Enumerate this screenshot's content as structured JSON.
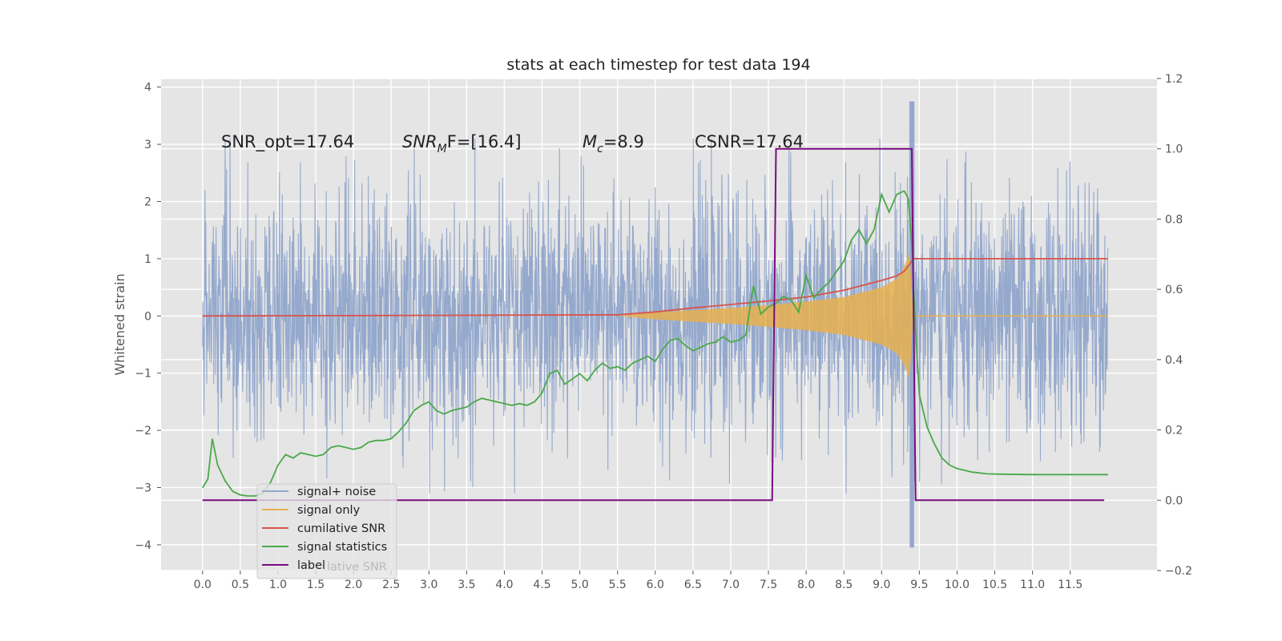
{
  "chart_data": {
    "type": "line",
    "title": "stats at each timestep for test data 194",
    "xlabel": "",
    "ylabel": "Whitened strain",
    "y2label": "",
    "xlim": [
      -0.55,
      12.65
    ],
    "ylim": [
      -4.45,
      4.15
    ],
    "y2lim": [
      -0.2,
      1.2
    ],
    "grid": true,
    "legend_position": "lower-left",
    "x_ticks": [
      "0.0",
      "0.5",
      "1.0",
      "1.5",
      "2.0",
      "2.5",
      "3.0",
      "3.5",
      "4.0",
      "4.5",
      "5.0",
      "5.5",
      "6.0",
      "6.5",
      "7.0",
      "7.5",
      "8.0",
      "8.5",
      "9.0",
      "9.5",
      "10.0",
      "10.5",
      "11.0",
      "11.5"
    ],
    "y_ticks": [
      "4",
      "3",
      "2",
      "1",
      "0",
      "−1",
      "−2",
      "−3",
      "−4"
    ],
    "y2_ticks": [
      "1.2",
      "1.0",
      "0.8",
      "0.6",
      "0.4",
      "0.2",
      "0.0",
      "−0.2"
    ],
    "annotations": {
      "snr_opt": "SNR_opt=17.64",
      "snr_mf_main": "SNR",
      "snr_mf_sub": "M",
      "snr_mf_rest": "F=[16.4]",
      "mc_main": "M",
      "mc_sub": "c",
      "mc_rest": "=8.9",
      "csnr": "CSNR=17.64"
    },
    "legend": {
      "ghost_text": "lative SNR"
    },
    "series": [
      {
        "name": "signal+ noise",
        "color": "#95a9cd",
        "axis": "left",
        "style": "noise",
        "x_range": [
          0.0,
          12.0
        ],
        "envelope": "approximately ±1.6 with spikes to ±3.8",
        "peak_x": 9.4,
        "peak_y": 3.75
      },
      {
        "name": "signal only",
        "color": "#e8b04d",
        "axis": "left",
        "style": "chirp-envelope",
        "x": [
          5.5,
          6.0,
          6.5,
          7.0,
          7.5,
          8.0,
          8.5,
          9.0,
          9.2,
          9.3,
          9.37,
          9.42,
          12.0
        ],
        "amplitude": [
          0.0,
          0.06,
          0.1,
          0.14,
          0.19,
          0.25,
          0.33,
          0.5,
          0.65,
          0.85,
          1.1,
          0.0,
          0.0
        ]
      },
      {
        "name": "cumilative SNR",
        "color": "#d9534a",
        "axis": "left",
        "x": [
          0.0,
          3.0,
          5.5,
          6.0,
          6.5,
          7.0,
          7.5,
          8.0,
          8.5,
          9.0,
          9.2,
          9.3,
          9.37,
          9.42,
          12.0
        ],
        "y": [
          0.0,
          0.01,
          0.02,
          0.07,
          0.14,
          0.2,
          0.26,
          0.33,
          0.45,
          0.62,
          0.7,
          0.78,
          0.9,
          1.0,
          1.0
        ]
      },
      {
        "name": "signal statistics",
        "color": "#4aa84a",
        "axis": "right",
        "x": [
          0.0,
          0.07,
          0.13,
          0.2,
          0.3,
          0.4,
          0.5,
          0.6,
          0.7,
          0.8,
          0.9,
          1.0,
          1.1,
          1.2,
          1.3,
          1.4,
          1.5,
          1.6,
          1.7,
          1.8,
          1.9,
          2.0,
          2.1,
          2.2,
          2.3,
          2.4,
          2.5,
          2.6,
          2.7,
          2.8,
          2.9,
          3.0,
          3.1,
          3.2,
          3.3,
          3.4,
          3.5,
          3.6,
          3.7,
          3.8,
          3.9,
          4.0,
          4.1,
          4.2,
          4.3,
          4.4,
          4.5,
          4.6,
          4.7,
          4.8,
          4.9,
          5.0,
          5.1,
          5.2,
          5.3,
          5.4,
          5.5,
          5.6,
          5.7,
          5.8,
          5.9,
          6.0,
          6.1,
          6.2,
          6.3,
          6.4,
          6.5,
          6.6,
          6.7,
          6.8,
          6.9,
          7.0,
          7.1,
          7.2,
          7.3,
          7.4,
          7.5,
          7.6,
          7.7,
          7.8,
          7.9,
          8.0,
          8.1,
          8.2,
          8.3,
          8.4,
          8.5,
          8.6,
          8.7,
          8.8,
          8.9,
          9.0,
          9.1,
          9.2,
          9.3,
          9.35,
          9.4,
          9.45,
          9.5,
          9.6,
          9.7,
          9.8,
          9.9,
          10.0,
          10.2,
          10.4,
          10.6,
          11.0,
          11.5,
          12.0
        ],
        "y": [
          0.035,
          0.06,
          0.175,
          0.1,
          0.055,
          0.025,
          0.015,
          0.012,
          0.012,
          0.02,
          0.05,
          0.1,
          0.13,
          0.12,
          0.135,
          0.13,
          0.125,
          0.13,
          0.15,
          0.155,
          0.15,
          0.145,
          0.15,
          0.165,
          0.17,
          0.17,
          0.175,
          0.195,
          0.22,
          0.255,
          0.27,
          0.28,
          0.255,
          0.245,
          0.255,
          0.26,
          0.265,
          0.28,
          0.29,
          0.285,
          0.28,
          0.275,
          0.27,
          0.275,
          0.27,
          0.28,
          0.305,
          0.36,
          0.37,
          0.33,
          0.345,
          0.36,
          0.34,
          0.37,
          0.39,
          0.375,
          0.38,
          0.37,
          0.39,
          0.4,
          0.41,
          0.395,
          0.43,
          0.455,
          0.46,
          0.44,
          0.425,
          0.435,
          0.445,
          0.45,
          0.465,
          0.45,
          0.455,
          0.47,
          0.61,
          0.53,
          0.55,
          0.56,
          0.58,
          0.57,
          0.535,
          0.64,
          0.575,
          0.6,
          0.62,
          0.65,
          0.68,
          0.74,
          0.77,
          0.73,
          0.77,
          0.87,
          0.82,
          0.87,
          0.88,
          0.86,
          0.73,
          0.48,
          0.3,
          0.21,
          0.16,
          0.12,
          0.1,
          0.09,
          0.08,
          0.075,
          0.074,
          0.073,
          0.073,
          0.073
        ]
      },
      {
        "name": "label",
        "color": "#7a0d82",
        "axis": "right",
        "x": [
          0.0,
          7.55,
          7.6,
          9.4,
          9.45,
          11.95
        ],
        "y": [
          0.0,
          0.0,
          1.0,
          1.0,
          0.0,
          0.0
        ]
      }
    ]
  }
}
